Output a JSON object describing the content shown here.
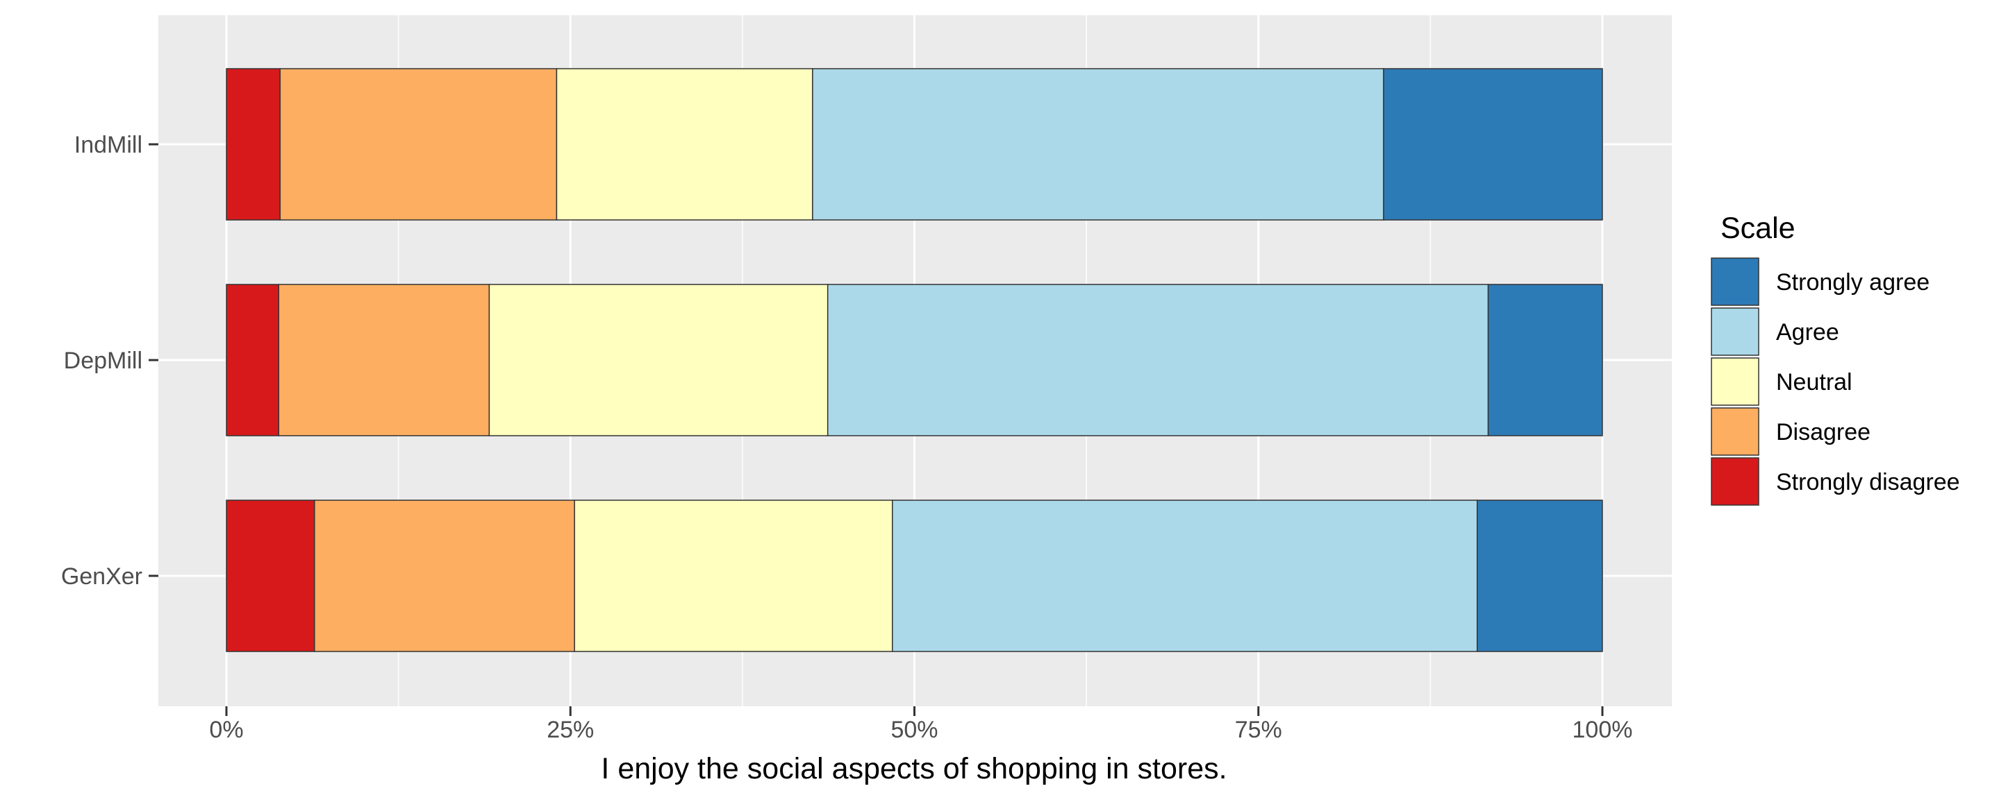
{
  "chart_data": {
    "type": "bar",
    "orientation": "horizontal",
    "stacked": true,
    "categories": [
      "IndMill",
      "DepMill",
      "GenXer"
    ],
    "series": [
      {
        "name": "Strongly disagree",
        "color": "#d7191c",
        "values": [
          3.9,
          3.8,
          6.4
        ]
      },
      {
        "name": "Disagree",
        "color": "#fdae61",
        "values": [
          20.1,
          15.3,
          18.9
        ]
      },
      {
        "name": "Neutral",
        "color": "#ffffbf",
        "values": [
          18.6,
          24.6,
          23.1
        ]
      },
      {
        "name": "Agree",
        "color": "#abd9e9",
        "values": [
          41.5,
          48.0,
          42.5
        ]
      },
      {
        "name": "Strongly agree",
        "color": "#2c7bb6",
        "values": [
          15.9,
          8.3,
          9.1
        ]
      }
    ],
    "xlabel": "I enjoy the social aspects of shopping in stores.",
    "ylabel": "",
    "xlim": [
      0,
      100
    ],
    "x_ticks": [
      "0%",
      "25%",
      "50%",
      "75%",
      "100%"
    ],
    "legend": {
      "title": "Scale",
      "position": "right",
      "entries": [
        "Strongly agree",
        "Agree",
        "Neutral",
        "Disagree",
        "Strongly disagree"
      ]
    },
    "grid": true
  }
}
